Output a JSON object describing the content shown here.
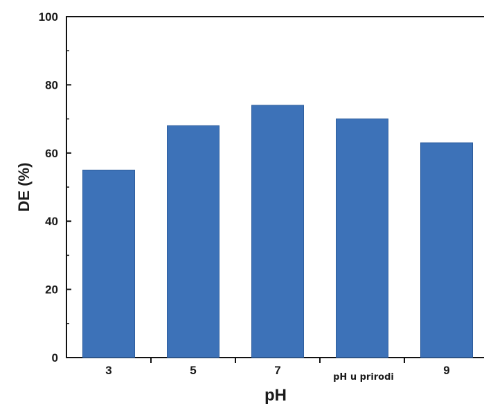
{
  "chart_data": {
    "type": "bar",
    "categories": [
      "3",
      "5",
      "7",
      "pH u prirodi",
      "9"
    ],
    "values": [
      55,
      68,
      74,
      70,
      63
    ],
    "xlabel": "pH",
    "ylabel": "DE (%)",
    "ylim": [
      0,
      100
    ],
    "yticks": [
      "0",
      "20",
      "40",
      "60",
      "80",
      "100"
    ],
    "grid": false,
    "bar_color": "#3d72b8",
    "bar_border": "#2e5e9e"
  }
}
